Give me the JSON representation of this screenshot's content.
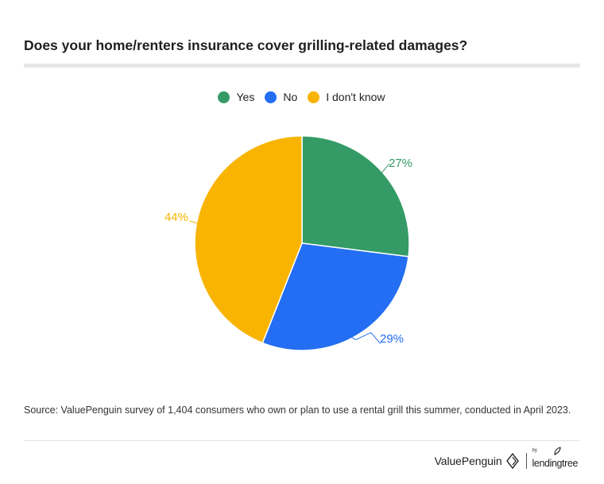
{
  "title": "Does your home/renters insurance cover grilling-related damages?",
  "legend": [
    {
      "label": "Yes",
      "color": "#349b66"
    },
    {
      "label": "No",
      "color": "#236ef2"
    },
    {
      "label": "I don't know",
      "color": "#f8b400"
    }
  ],
  "chart_data": {
    "type": "pie",
    "categories": [
      "Yes",
      "No",
      "I don't know"
    ],
    "values": [
      27,
      29,
      44
    ],
    "labels": [
      "27%",
      "29%",
      "44%"
    ],
    "colors": [
      "#349b66",
      "#236ef2",
      "#f8b400"
    ],
    "legend_position": "top",
    "start_angle": "12 o'clock",
    "direction": "clockwise"
  },
  "source": "Source: ValuePenguin survey of 1,404 consumers who own or plan to use a rental grill this summer, conducted in April 2023.",
  "footer": {
    "brand_primary": "ValuePenguin",
    "brand_by": "by",
    "brand_secondary": "lendingtree"
  }
}
